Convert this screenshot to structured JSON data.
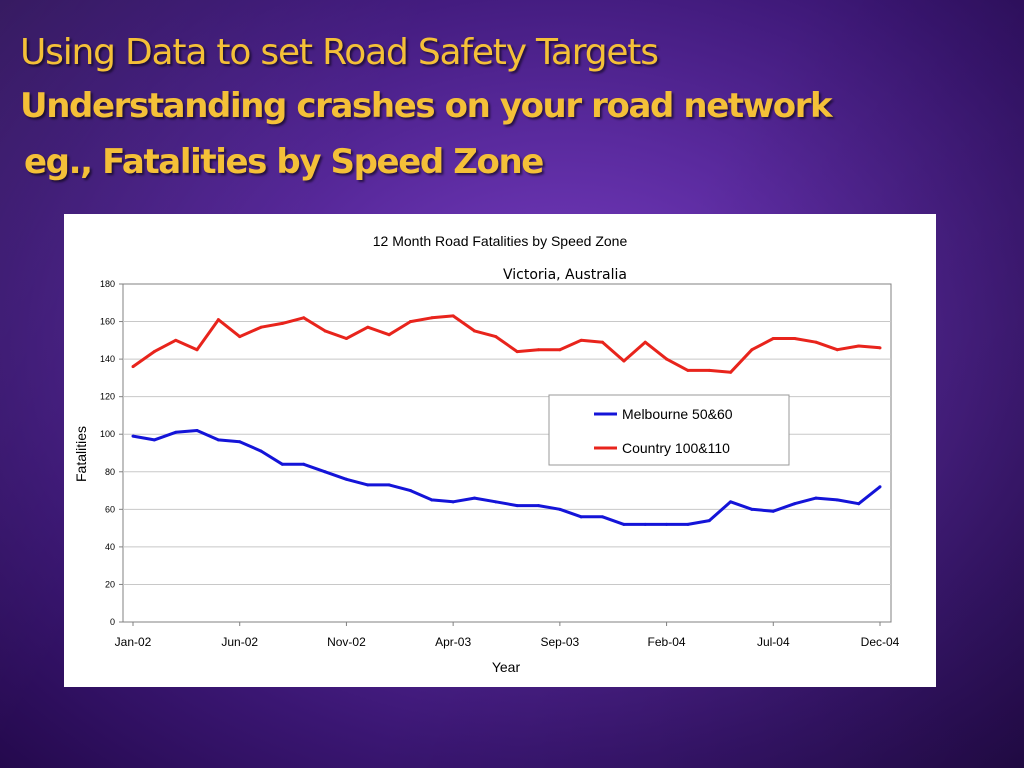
{
  "slide": {
    "title_line1": "Using Data to set Road Safety Targets",
    "title_line2": "Understanding crashes on your road network",
    "title_line3": " eg., Fatalities by Speed Zone",
    "title_color": "#f4c038"
  },
  "chart_data": {
    "type": "line",
    "title": "12 Month Road Fatalities by Speed Zone",
    "subtitle": "Victoria, Australia",
    "xlabel": "Year",
    "ylabel": "Fatalities",
    "ylim": [
      0,
      180
    ],
    "y_ticks": [
      0,
      20,
      40,
      60,
      80,
      100,
      120,
      140,
      160,
      180
    ],
    "x_tick_labels": [
      "Jan-02",
      "Jun-02",
      "Nov-02",
      "Apr-03",
      "Sep-03",
      "Feb-04",
      "Jul-04",
      "Dec-04"
    ],
    "x": [
      "Jan-02",
      "Feb-02",
      "Mar-02",
      "Apr-02",
      "May-02",
      "Jun-02",
      "Jul-02",
      "Aug-02",
      "Sep-02",
      "Oct-02",
      "Nov-02",
      "Dec-02",
      "Jan-03",
      "Feb-03",
      "Mar-03",
      "Apr-03",
      "May-03",
      "Jun-03",
      "Jul-03",
      "Aug-03",
      "Sep-03",
      "Oct-03",
      "Nov-03",
      "Dec-03",
      "Jan-04",
      "Feb-04",
      "Mar-04",
      "Apr-04",
      "May-04",
      "Jun-04",
      "Jul-04",
      "Aug-04",
      "Sep-04",
      "Oct-04",
      "Nov-04",
      "Dec-04"
    ],
    "grid": true,
    "legend_position": "center-right",
    "series": [
      {
        "name": "Melbourne 50&60",
        "color": "#1414d8",
        "values": [
          99,
          97,
          101,
          102,
          97,
          96,
          91,
          84,
          84,
          80,
          76,
          73,
          73,
          70,
          65,
          64,
          66,
          64,
          62,
          62,
          60,
          56,
          56,
          52,
          52,
          52,
          52,
          54,
          64,
          60,
          59,
          63,
          66,
          65,
          63,
          72
        ]
      },
      {
        "name": "Country 100&110",
        "color": "#e8241c",
        "values": [
          136,
          144,
          150,
          145,
          161,
          152,
          157,
          159,
          162,
          155,
          151,
          157,
          153,
          160,
          162,
          163,
          155,
          152,
          144,
          145,
          145,
          150,
          149,
          139,
          149,
          140,
          134,
          134,
          133,
          145,
          151,
          151,
          149,
          145,
          147,
          146
        ]
      }
    ]
  }
}
